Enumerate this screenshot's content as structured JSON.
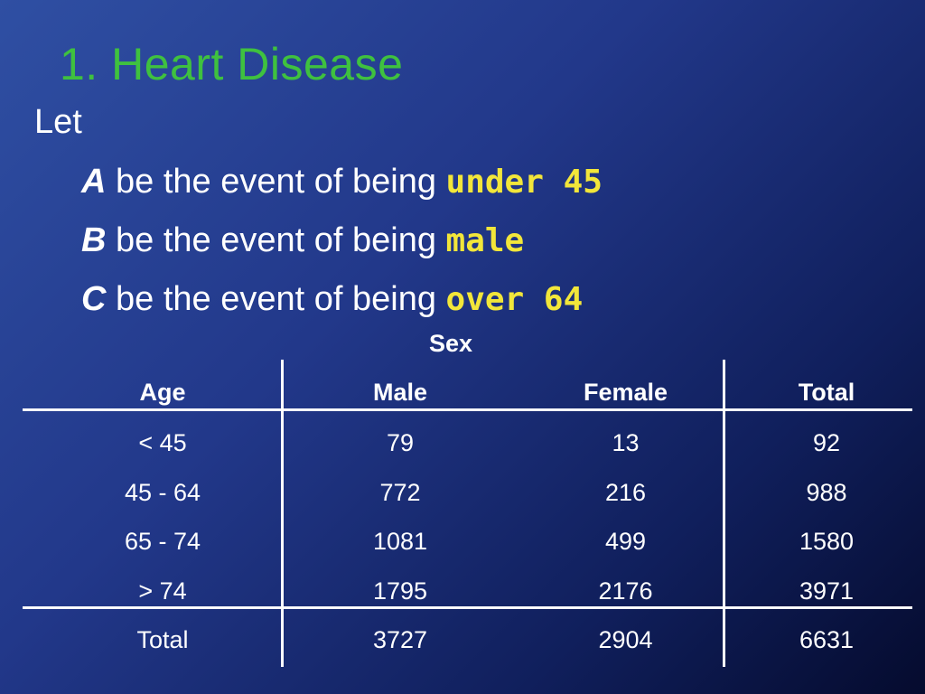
{
  "title": "1.  Heart Disease",
  "intro": "Let",
  "definitions": [
    {
      "var": "A",
      "text": " be the event of being ",
      "highlight": "under 45"
    },
    {
      "var": "B",
      "text": " be the event of being ",
      "highlight": "male"
    },
    {
      "var": "C",
      "text": " be the event of being ",
      "highlight": "over 64"
    }
  ],
  "table": {
    "group_header": "Sex",
    "columns": [
      "Age",
      "Male",
      "Female",
      "Total"
    ],
    "rows": [
      [
        "< 45",
        "79",
        "13",
        "92"
      ],
      [
        "45 - 64",
        "772",
        "216",
        "988"
      ],
      [
        "65 - 74",
        "1081",
        "499",
        "1580"
      ],
      [
        "> 74",
        "1795",
        "2176",
        "3971"
      ]
    ],
    "total_row": [
      "Total",
      "3727",
      "2904",
      "6631"
    ]
  },
  "colors": {
    "title": "#3fc13f",
    "highlight": "#f2e63a",
    "text": "#ffffff",
    "background": "#1a2f7a"
  }
}
